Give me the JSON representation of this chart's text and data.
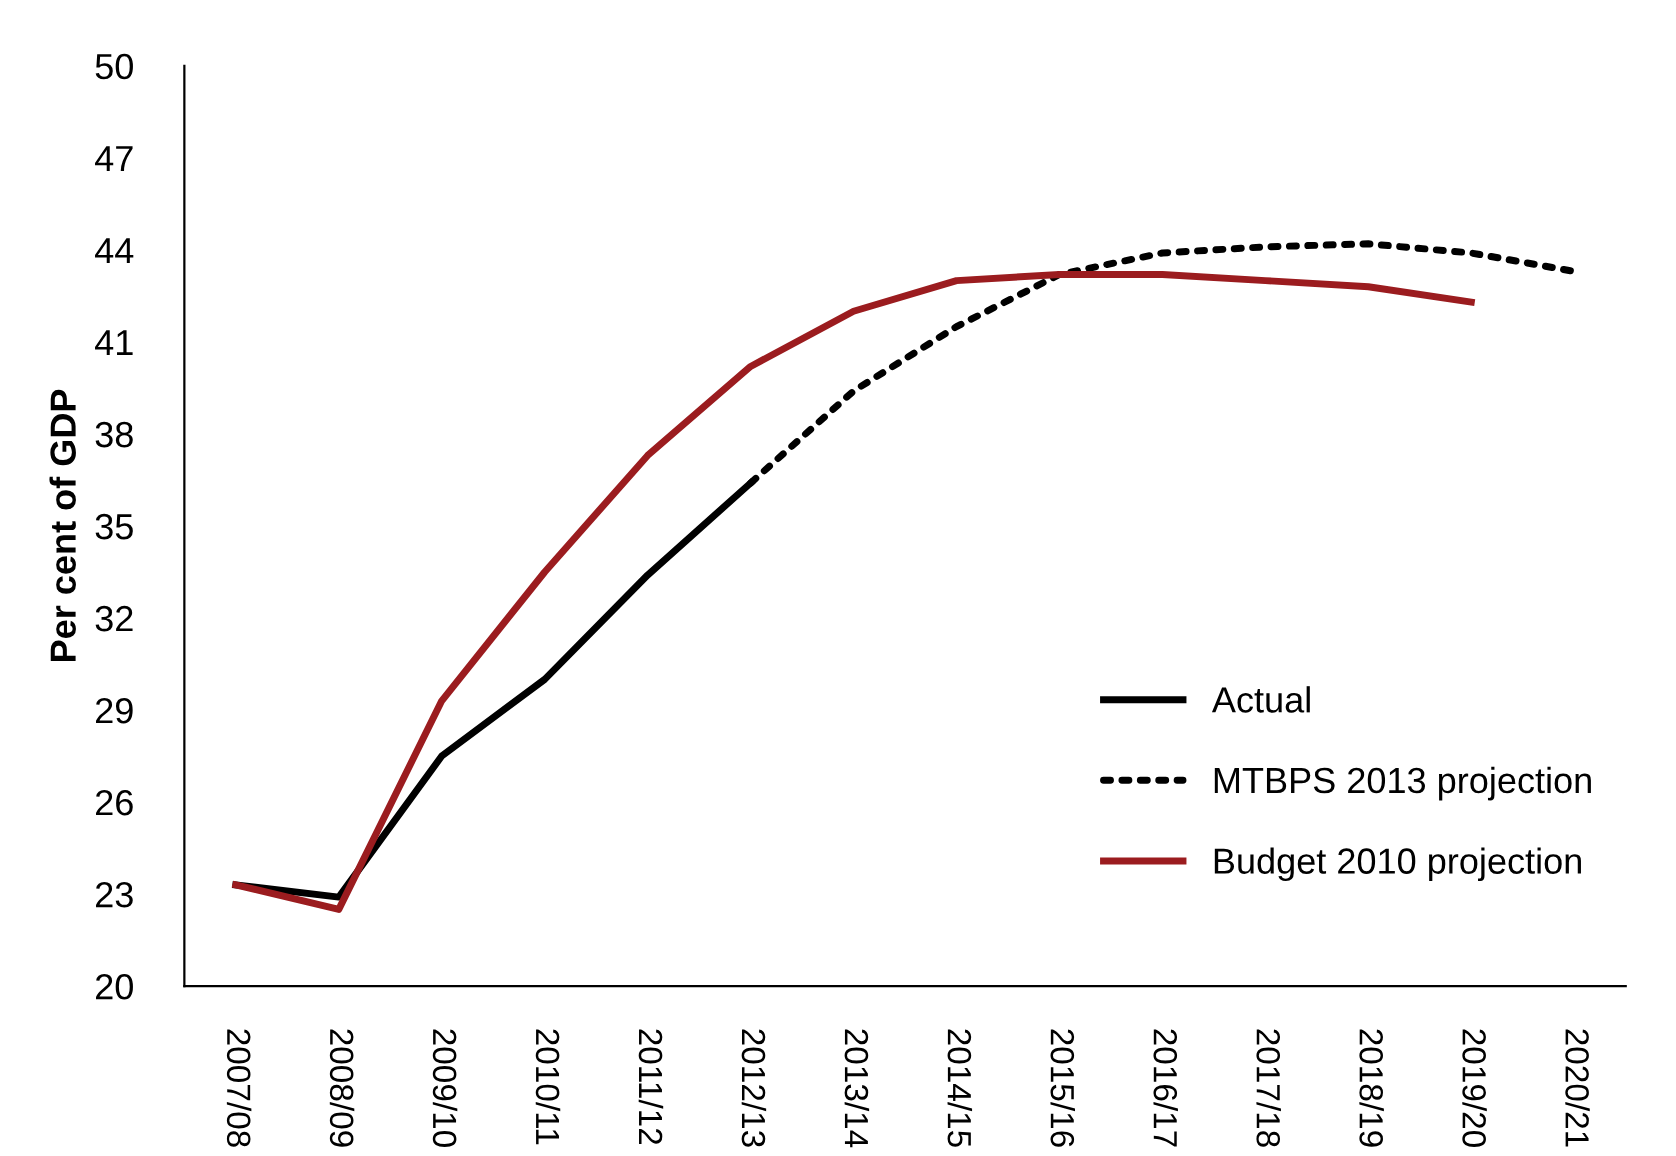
{
  "chart_data": {
    "type": "line",
    "ylabel": "Per cent of GDP",
    "categories": [
      "2007/08",
      "2008/09",
      "2009/10",
      "2010/11",
      "2011/12",
      "2012/13",
      "2013/14",
      "2014/15",
      "2015/16",
      "2016/17",
      "2017/18",
      "2018/19",
      "2019/20",
      "2020/21"
    ],
    "series": [
      {
        "name": "Actual",
        "color": "#000000",
        "line_style": "solid",
        "values": [
          23.3,
          22.9,
          27.5,
          30.0,
          33.4,
          36.4,
          null,
          null,
          null,
          null,
          null,
          null,
          null,
          null
        ]
      },
      {
        "name": "MTBPS 2013 projection",
        "color": "#000000",
        "line_style": "dotted",
        "values": [
          null,
          null,
          null,
          null,
          null,
          36.4,
          39.4,
          41.5,
          43.2,
          43.9,
          44.1,
          44.2,
          43.9,
          43.3
        ]
      },
      {
        "name": "Budget 2010 projection",
        "color": "#9b1c1f",
        "line_style": "solid",
        "values": [
          23.3,
          22.5,
          29.3,
          33.5,
          37.3,
          40.2,
          42.0,
          43.0,
          43.2,
          43.2,
          43.0,
          42.8,
          42.3,
          null
        ]
      }
    ],
    "ylim": [
      20,
      50
    ],
    "yticks": [
      20,
      23,
      26,
      29,
      32,
      35,
      38,
      41,
      44,
      47,
      50
    ],
    "grid": false,
    "legend": "right",
    "marker": "none"
  }
}
